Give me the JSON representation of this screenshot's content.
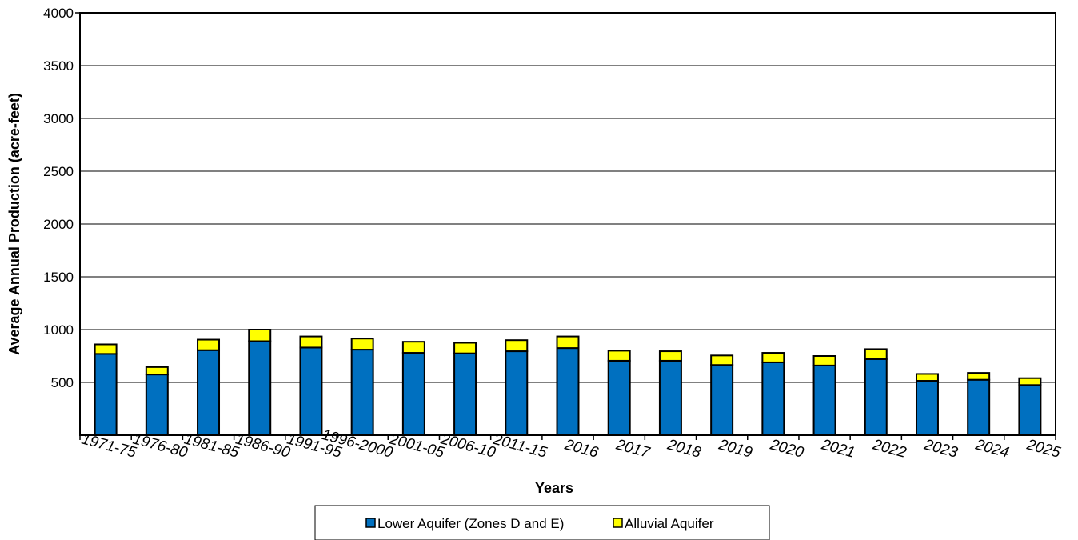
{
  "chart_data": {
    "type": "bar",
    "stacked": true,
    "title": "",
    "xlabel": "Years",
    "ylabel": "Average Annual Production (acre-feet)",
    "ylim": [
      0,
      4000
    ],
    "yticks": [
      "500",
      "1000",
      "1500",
      "2000",
      "2500",
      "3000",
      "3500",
      "4000"
    ],
    "ytick_values": [
      500,
      1000,
      1500,
      2000,
      2500,
      3000,
      3500,
      4000
    ],
    "grid": true,
    "legend_position": "bottom",
    "categories": [
      "1971-75",
      "1976-80",
      "1981-85",
      "1986-90",
      "1991-95",
      "1996-2000",
      "2001-05",
      "2006-10",
      "2011-15",
      "2016",
      "2017",
      "2018",
      "2019",
      "2020",
      "2021",
      "2022",
      "2023",
      "2024",
      "2025"
    ],
    "series": [
      {
        "name": "Lower Aquifer (Zones D and E)",
        "color": "#0070C0",
        "values": [
          770,
          575,
          805,
          890,
          830,
          810,
          780,
          775,
          795,
          825,
          705,
          705,
          665,
          690,
          660,
          720,
          515,
          525,
          475
        ]
      },
      {
        "name": "Alluvial Aquifer",
        "color": "#FFFF00",
        "values": [
          90,
          70,
          100,
          110,
          105,
          105,
          105,
          100,
          105,
          110,
          95,
          90,
          90,
          90,
          90,
          95,
          65,
          65,
          65
        ]
      }
    ]
  }
}
